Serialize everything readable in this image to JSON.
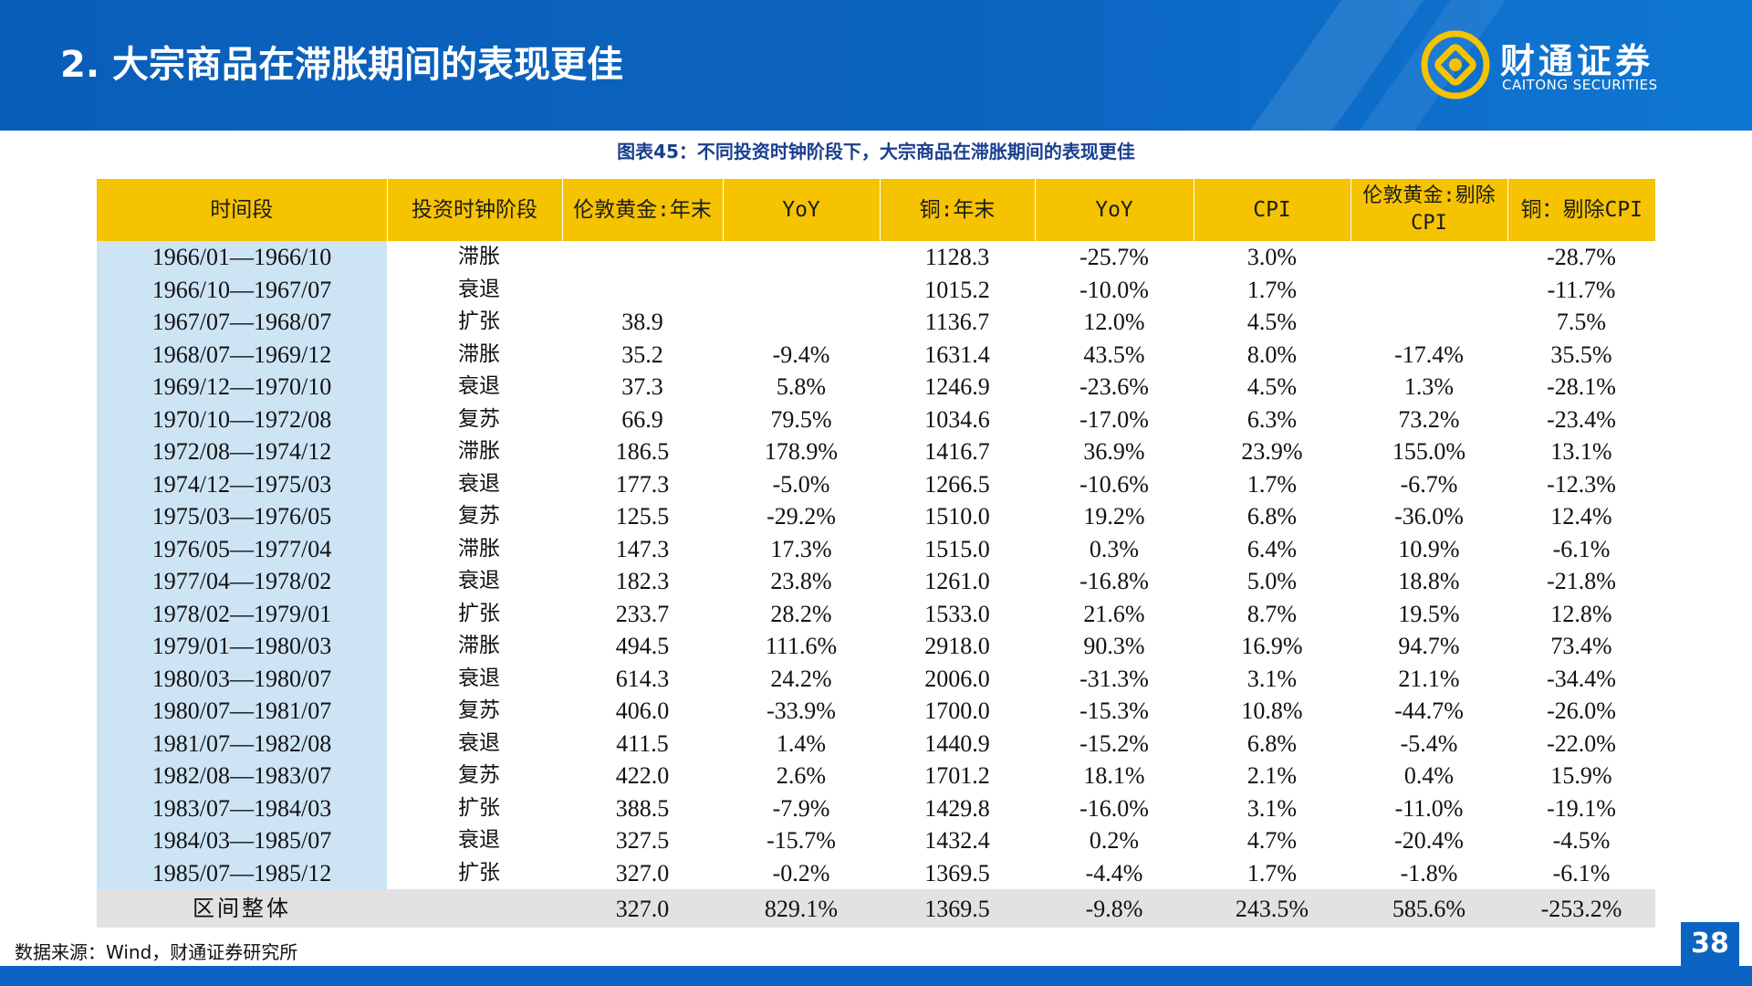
{
  "header": {
    "title": "2. 大宗商品在滞胀期间的表现更佳"
  },
  "logo": {
    "cn": "财通证券",
    "en": "CAITONG SECURITIES"
  },
  "figure_title": "图表45：不同投资时钟阶段下，大宗商品在滞胀期间的表现更佳",
  "table": {
    "headers": [
      "时间段",
      "投资时钟阶段",
      "伦敦黄金:年末",
      "YoY",
      "铜:年末",
      "YoY",
      "CPI",
      "伦敦黄金:剔除CPI",
      "铜：剔除CPI"
    ],
    "rows": [
      [
        "1966/01—1966/10",
        "滞胀",
        "",
        "",
        "1128.3",
        "-25.7%",
        "3.0%",
        "",
        "-28.7%"
      ],
      [
        "1966/10—1967/07",
        "衰退",
        "",
        "",
        "1015.2",
        "-10.0%",
        "1.7%",
        "",
        "-11.7%"
      ],
      [
        "1967/07—1968/07",
        "扩张",
        "38.9",
        "",
        "1136.7",
        "12.0%",
        "4.5%",
        "",
        "7.5%"
      ],
      [
        "1968/07—1969/12",
        "滞胀",
        "35.2",
        "-9.4%",
        "1631.4",
        "43.5%",
        "8.0%",
        "-17.4%",
        "35.5%"
      ],
      [
        "1969/12—1970/10",
        "衰退",
        "37.3",
        "5.8%",
        "1246.9",
        "-23.6%",
        "4.5%",
        "1.3%",
        "-28.1%"
      ],
      [
        "1970/10—1972/08",
        "复苏",
        "66.9",
        "79.5%",
        "1034.6",
        "-17.0%",
        "6.3%",
        "73.2%",
        "-23.4%"
      ],
      [
        "1972/08—1974/12",
        "滞胀",
        "186.5",
        "178.9%",
        "1416.7",
        "36.9%",
        "23.9%",
        "155.0%",
        "13.1%"
      ],
      [
        "1974/12—1975/03",
        "衰退",
        "177.3",
        "-5.0%",
        "1266.5",
        "-10.6%",
        "1.7%",
        "-6.7%",
        "-12.3%"
      ],
      [
        "1975/03—1976/05",
        "复苏",
        "125.5",
        "-29.2%",
        "1510.0",
        "19.2%",
        "6.8%",
        "-36.0%",
        "12.4%"
      ],
      [
        "1976/05—1977/04",
        "滞胀",
        "147.3",
        "17.3%",
        "1515.0",
        "0.3%",
        "6.4%",
        "10.9%",
        "-6.1%"
      ],
      [
        "1977/04—1978/02",
        "衰退",
        "182.3",
        "23.8%",
        "1261.0",
        "-16.8%",
        "5.0%",
        "18.8%",
        "-21.8%"
      ],
      [
        "1978/02—1979/01",
        "扩张",
        "233.7",
        "28.2%",
        "1533.0",
        "21.6%",
        "8.7%",
        "19.5%",
        "12.8%"
      ],
      [
        "1979/01—1980/03",
        "滞胀",
        "494.5",
        "111.6%",
        "2918.0",
        "90.3%",
        "16.9%",
        "94.7%",
        "73.4%"
      ],
      [
        "1980/03—1980/07",
        "衰退",
        "614.3",
        "24.2%",
        "2006.0",
        "-31.3%",
        "3.1%",
        "21.1%",
        "-34.4%"
      ],
      [
        "1980/07—1981/07",
        "复苏",
        "406.0",
        "-33.9%",
        "1700.0",
        "-15.3%",
        "10.8%",
        "-44.7%",
        "-26.0%"
      ],
      [
        "1981/07—1982/08",
        "衰退",
        "411.5",
        "1.4%",
        "1440.9",
        "-15.2%",
        "6.8%",
        "-5.4%",
        "-22.0%"
      ],
      [
        "1982/08—1983/07",
        "复苏",
        "422.0",
        "2.6%",
        "1701.2",
        "18.1%",
        "2.1%",
        "0.4%",
        "15.9%"
      ],
      [
        "1983/07—1984/03",
        "扩张",
        "388.5",
        "-7.9%",
        "1429.8",
        "-16.0%",
        "3.1%",
        "-11.0%",
        "-19.1%"
      ],
      [
        "1984/03—1985/07",
        "衰退",
        "327.5",
        "-15.7%",
        "1432.4",
        "0.2%",
        "4.7%",
        "-20.4%",
        "-4.5%"
      ],
      [
        "1985/07—1985/12",
        "扩张",
        "327.0",
        "-0.2%",
        "1369.5",
        "-4.4%",
        "1.7%",
        "-1.8%",
        "-6.1%"
      ]
    ],
    "total": [
      "区间整体",
      "",
      "327.0",
      "829.1%",
      "1369.5",
      "-9.8%",
      "243.5%",
      "585.6%",
      "-253.2%"
    ]
  },
  "source": "数据来源：Wind，财通证券研究所",
  "page_number": "38"
}
